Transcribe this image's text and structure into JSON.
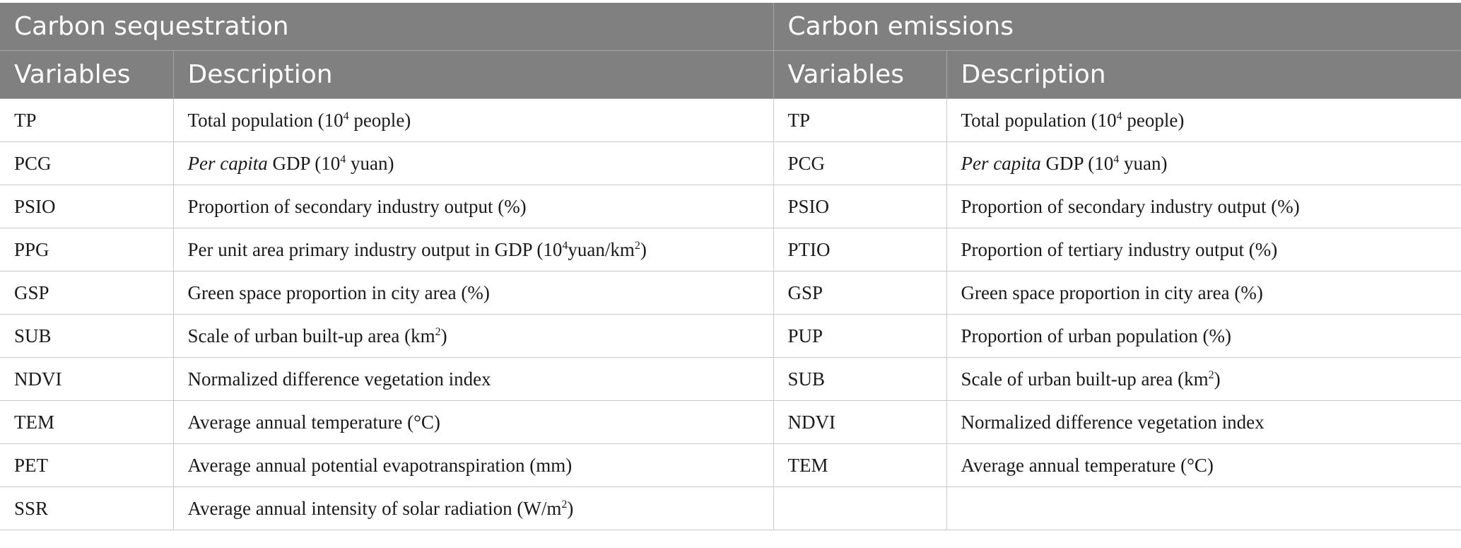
{
  "header": {
    "group_left": "Carbon sequestration",
    "group_right": "Carbon emissions",
    "col_variables": "Variables",
    "col_description": "Description"
  },
  "rows": [
    {
      "seq_var": "TP",
      "seq_desc": [
        "Total population (10",
        {
          "sup": "4"
        },
        " people)"
      ],
      "emi_var": "TP",
      "emi_desc": [
        "Total population (10",
        {
          "sup": "4"
        },
        " people)"
      ]
    },
    {
      "seq_var": "PCG",
      "seq_desc": [
        {
          "it": "Per capita"
        },
        " GDP (10",
        {
          "sup": "4"
        },
        " yuan)"
      ],
      "emi_var": "PCG",
      "emi_desc": [
        {
          "it": "Per capita"
        },
        " GDP (10",
        {
          "sup": "4"
        },
        " yuan)"
      ]
    },
    {
      "seq_var": "PSIO",
      "seq_desc": [
        "Proportion of secondary industry output (%)"
      ],
      "emi_var": "PSIO",
      "emi_desc": [
        "Proportion of secondary industry output (%)"
      ]
    },
    {
      "seq_var": "PPG",
      "seq_desc": [
        "Per unit area primary industry output in GDP (10",
        {
          "sup": "4"
        },
        "yuan/km",
        {
          "sup": "2"
        },
        ")"
      ],
      "emi_var": "PTIO",
      "emi_desc": [
        "Proportion of tertiary industry output (%)"
      ]
    },
    {
      "seq_var": "GSP",
      "seq_desc": [
        "Green space proportion in city area (%)"
      ],
      "emi_var": "GSP",
      "emi_desc": [
        "Green space proportion in city area (%)"
      ]
    },
    {
      "seq_var": "SUB",
      "seq_desc": [
        "Scale of urban built-up area (km",
        {
          "sup": "2"
        },
        ")"
      ],
      "emi_var": "PUP",
      "emi_desc": [
        "Proportion of urban population (%)"
      ]
    },
    {
      "seq_var": "NDVI",
      "seq_desc": [
        "Normalized difference vegetation index"
      ],
      "emi_var": "SUB",
      "emi_desc": [
        "Scale of urban built-up area (km",
        {
          "sup": "2"
        },
        ")"
      ]
    },
    {
      "seq_var": "TEM",
      "seq_desc": [
        "Average annual temperature (°C)"
      ],
      "emi_var": "NDVI",
      "emi_desc": [
        "Normalized difference vegetation index"
      ]
    },
    {
      "seq_var": "PET",
      "seq_desc": [
        "Average annual potential evapotranspiration (mm)"
      ],
      "emi_var": "TEM",
      "emi_desc": [
        "Average annual temperature (°C)"
      ]
    },
    {
      "seq_var": "SSR",
      "seq_desc": [
        "Average annual intensity of solar radiation (W/m",
        {
          "sup": "2"
        },
        ")"
      ],
      "emi_var": "",
      "emi_desc": []
    }
  ]
}
